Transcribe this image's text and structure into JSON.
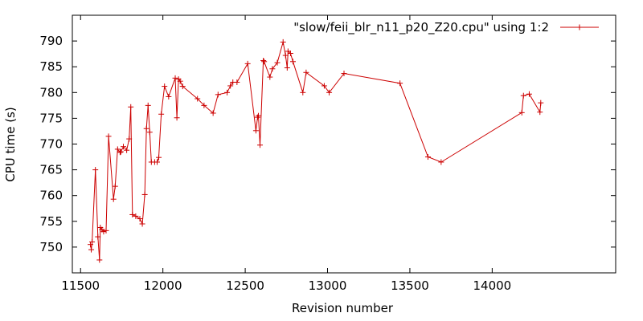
{
  "chart_data": {
    "type": "line",
    "title": "",
    "xlabel": "Revision number",
    "ylabel": "CPU time (s)",
    "xlim": [
      11450,
      14750
    ],
    "ylim": [
      745,
      795
    ],
    "x_ticks": [
      11500,
      12000,
      12500,
      13000,
      13500,
      14000
    ],
    "y_ticks": [
      750,
      755,
      760,
      765,
      770,
      775,
      780,
      785,
      790
    ],
    "grid": false,
    "legend_position": "top-right",
    "series": [
      {
        "name": "\"slow/feii_blr_n11_p20_Z20.cpu\" using 1:2",
        "color": "#cc0000",
        "marker": "plus",
        "points": [
          [
            11560,
            750.5
          ],
          [
            11565,
            749.5
          ],
          [
            11570,
            751.0
          ],
          [
            11590,
            765.0
          ],
          [
            11605,
            752.0
          ],
          [
            11615,
            747.5
          ],
          [
            11620,
            753.8
          ],
          [
            11630,
            753.4
          ],
          [
            11640,
            753.0
          ],
          [
            11655,
            753.2
          ],
          [
            11670,
            771.5
          ],
          [
            11700,
            759.3
          ],
          [
            11710,
            761.8
          ],
          [
            11725,
            769.0
          ],
          [
            11740,
            768.4
          ],
          [
            11745,
            768.5
          ],
          [
            11760,
            769.5
          ],
          [
            11780,
            768.8
          ],
          [
            11795,
            771.0
          ],
          [
            11805,
            777.2
          ],
          [
            11815,
            756.3
          ],
          [
            11835,
            756.0
          ],
          [
            11860,
            755.5
          ],
          [
            11875,
            754.5
          ],
          [
            11890,
            760.2
          ],
          [
            11900,
            773.0
          ],
          [
            11910,
            777.5
          ],
          [
            11920,
            772.3
          ],
          [
            11930,
            766.5
          ],
          [
            11950,
            766.5
          ],
          [
            11965,
            766.5
          ],
          [
            11975,
            767.4
          ],
          [
            11990,
            775.8
          ],
          [
            12010,
            781.2
          ],
          [
            12035,
            779.2
          ],
          [
            12075,
            782.8
          ],
          [
            12085,
            775.1
          ],
          [
            12095,
            782.6
          ],
          [
            12105,
            782.2
          ],
          [
            12120,
            781.2
          ],
          [
            12210,
            778.8
          ],
          [
            12250,
            777.5
          ],
          [
            12305,
            776.0
          ],
          [
            12335,
            779.6
          ],
          [
            12390,
            780.0
          ],
          [
            12410,
            781.3
          ],
          [
            12425,
            782.0
          ],
          [
            12450,
            782.0
          ],
          [
            12515,
            785.6
          ],
          [
            12565,
            772.6
          ],
          [
            12575,
            775.2
          ],
          [
            12580,
            775.5
          ],
          [
            12590,
            769.8
          ],
          [
            12610,
            786.2
          ],
          [
            12615,
            786.0
          ],
          [
            12650,
            783.0
          ],
          [
            12665,
            784.6
          ],
          [
            12695,
            785.8
          ],
          [
            12730,
            789.8
          ],
          [
            12745,
            787.2
          ],
          [
            12755,
            784.8
          ],
          [
            12760,
            788.0
          ],
          [
            12775,
            787.6
          ],
          [
            12790,
            786.0
          ],
          [
            12850,
            780.0
          ],
          [
            12870,
            783.9
          ],
          [
            12980,
            781.3
          ],
          [
            13010,
            780.0
          ],
          [
            13100,
            783.7
          ],
          [
            13440,
            781.8
          ],
          [
            13610,
            767.5
          ],
          [
            13690,
            766.5
          ],
          [
            14180,
            776.1
          ],
          [
            14190,
            779.4
          ],
          [
            14225,
            779.7
          ],
          [
            14290,
            776.2
          ],
          [
            14295,
            778.0
          ]
        ]
      }
    ]
  }
}
